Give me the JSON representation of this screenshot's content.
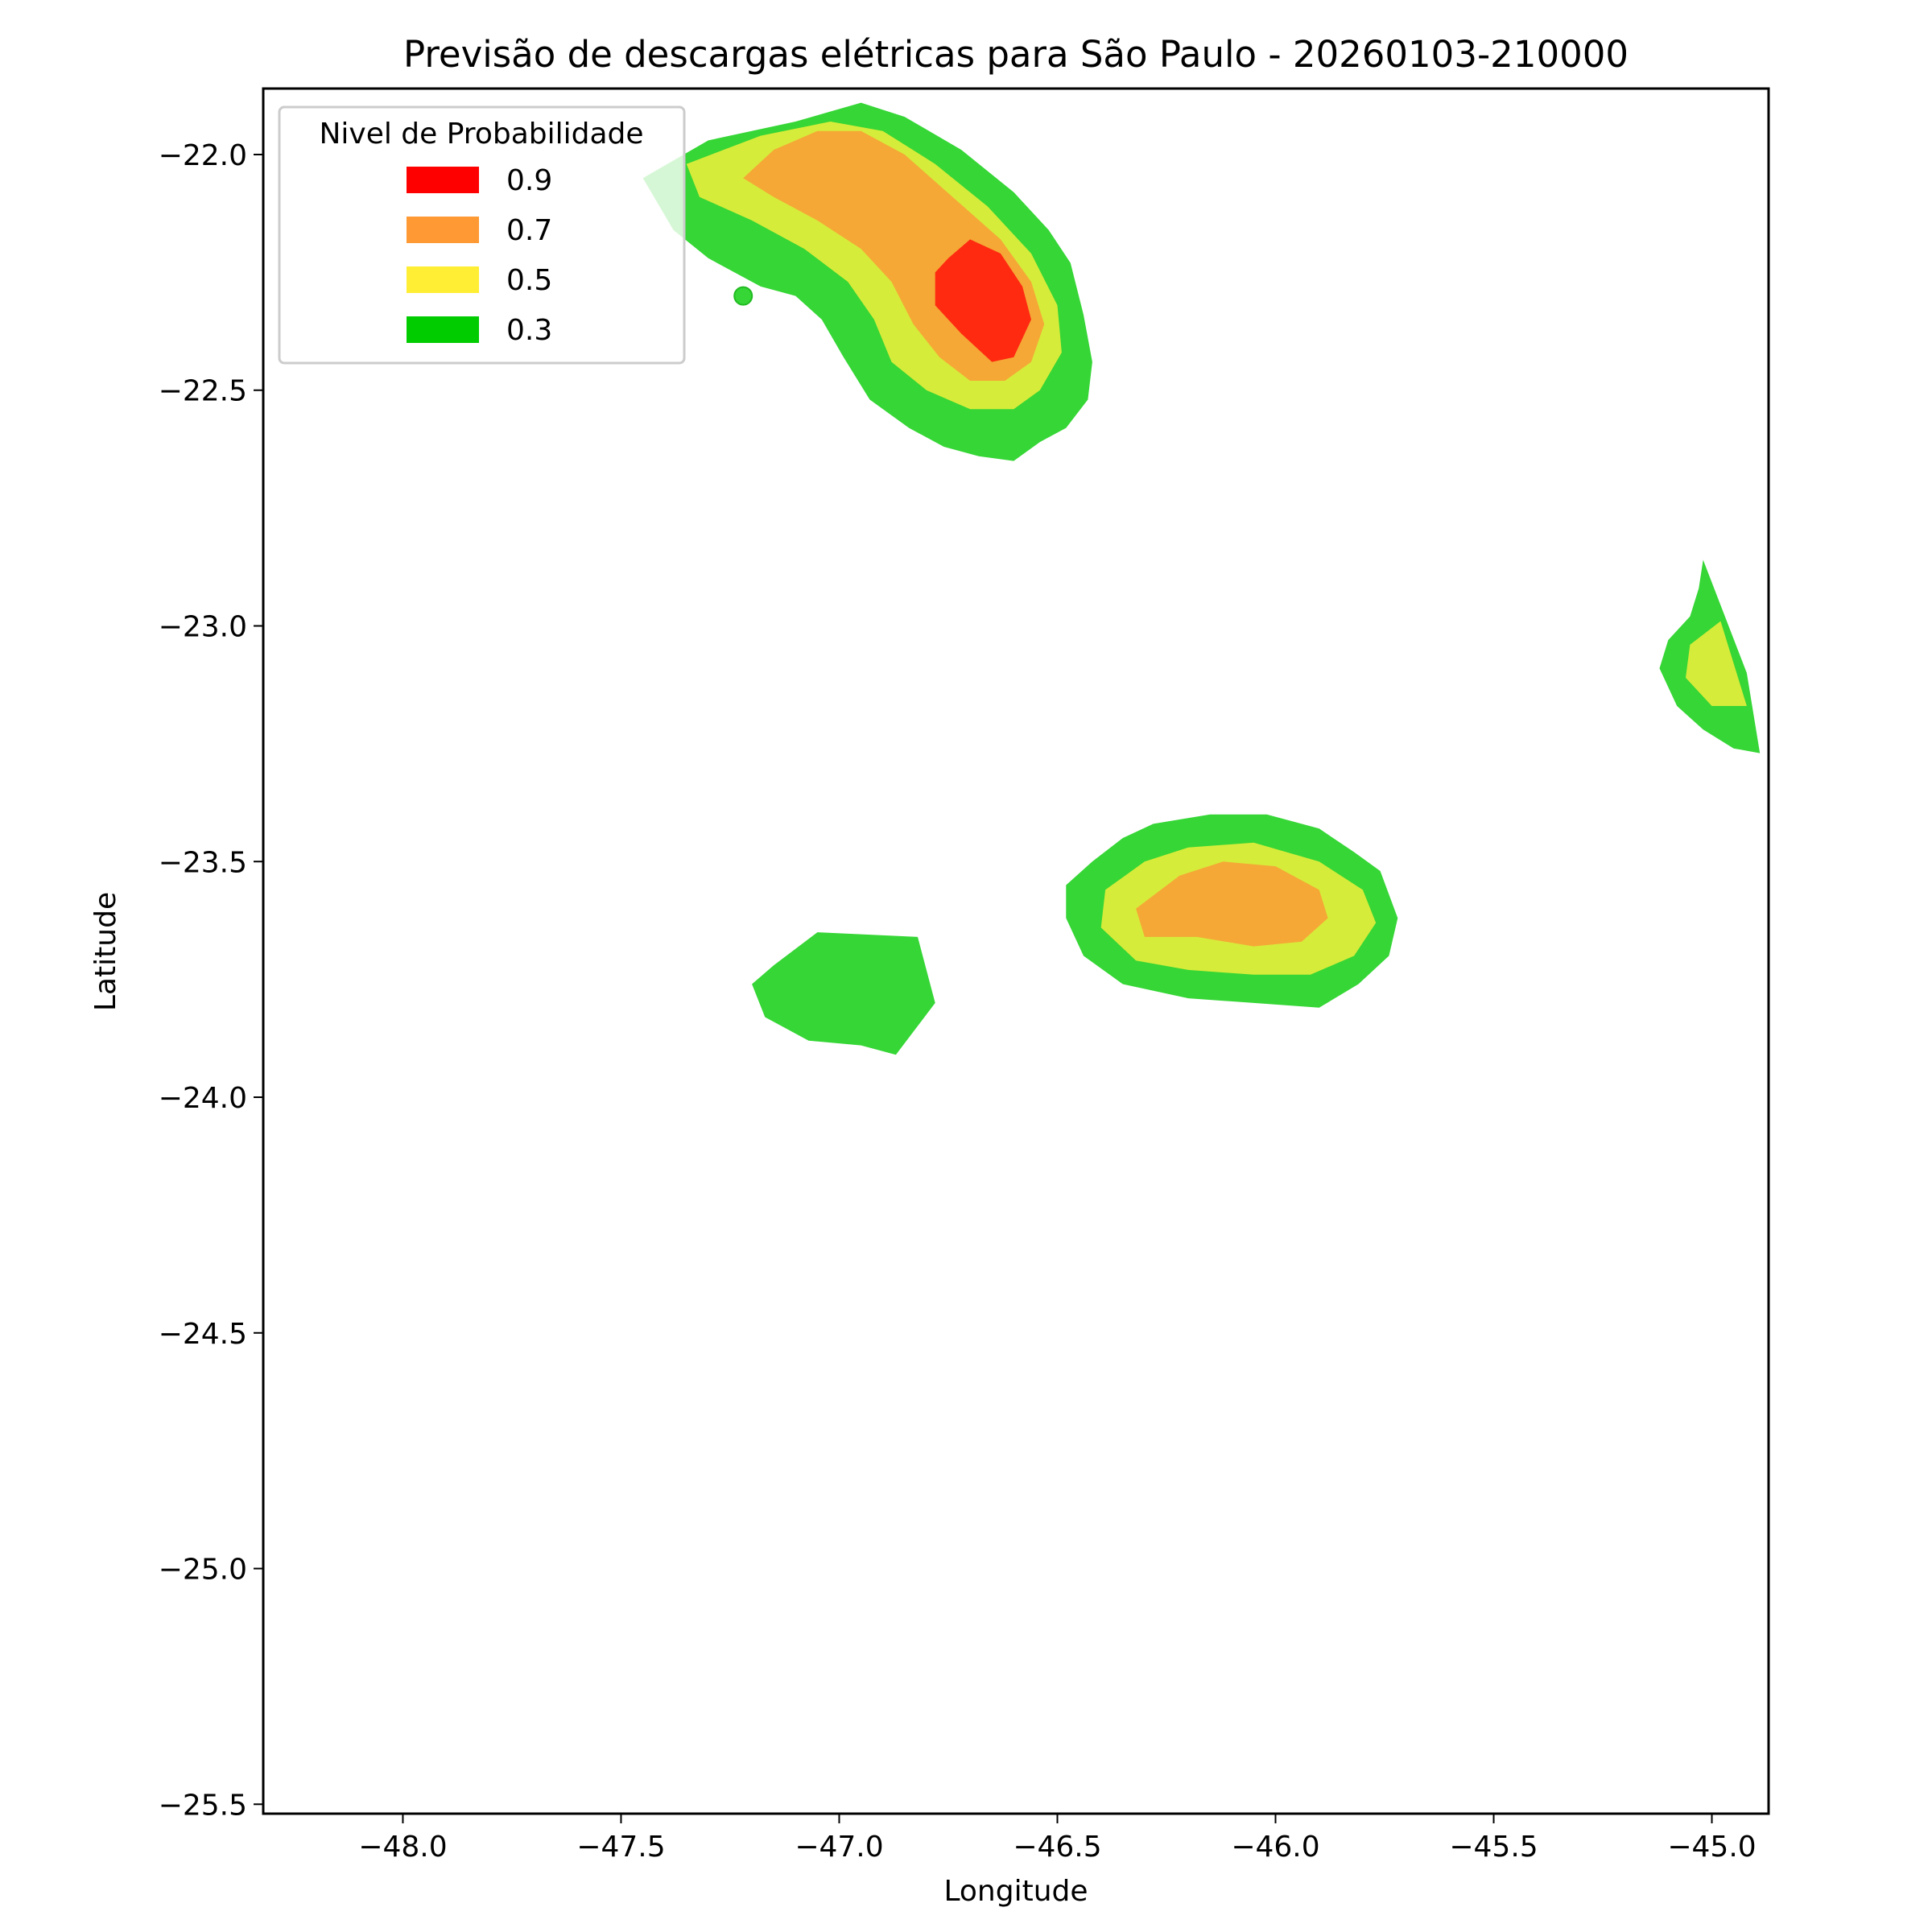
{
  "chart_data": {
    "type": "contour",
    "title": "Previsão de descargas elétricas para São Paulo - 20260103-210000",
    "xlabel": "Longitude",
    "ylabel": "Latitude",
    "xlim": [
      -48.32,
      -44.87
    ],
    "ylim": [
      -25.52,
      -21.86
    ],
    "xticks": [
      -48.0,
      -47.5,
      -47.0,
      -46.5,
      -46.0,
      -45.5,
      -45.0
    ],
    "yticks": [
      -22.0,
      -22.5,
      -23.0,
      -23.5,
      -24.0,
      -24.5,
      -25.0,
      -25.5
    ],
    "xtick_labels": [
      "−48.0",
      "−47.5",
      "−47.0",
      "−46.5",
      "−46.0",
      "−45.5",
      "−45.0"
    ],
    "ytick_labels": [
      "−22.0",
      "−22.5",
      "−23.0",
      "−23.5",
      "−24.0",
      "−24.5",
      "−25.0",
      "−25.5"
    ],
    "legend": {
      "title": "Nivel de Probabilidade",
      "position": "upper-left",
      "entries": [
        {
          "label": "0.9",
          "color": "#ff0000"
        },
        {
          "label": "0.7",
          "color": "#ff9933"
        },
        {
          "label": "0.5",
          "color": "#ffee33"
        },
        {
          "label": "0.3",
          "color": "#00cc00"
        }
      ]
    },
    "level_fill_colors": {
      "0.3": "#35d635",
      "0.5": "#d6ec3a",
      "0.7": "#f5a836",
      "0.9": "#ff2a10"
    },
    "regions": [
      {
        "name": "campinas-cell",
        "levels": [
          {
            "level": "0.3",
            "polygon": [
              [
                -47.45,
                -22.05
              ],
              [
                -47.3,
                -21.97
              ],
              [
                -47.1,
                -21.93
              ],
              [
                -46.95,
                -21.89
              ],
              [
                -46.85,
                -21.92
              ],
              [
                -46.72,
                -21.99
              ],
              [
                -46.6,
                -22.08
              ],
              [
                -46.52,
                -22.16
              ],
              [
                -46.47,
                -22.23
              ],
              [
                -46.44,
                -22.34
              ],
              [
                -46.42,
                -22.44
              ],
              [
                -46.43,
                -22.52
              ],
              [
                -46.48,
                -22.58
              ],
              [
                -46.54,
                -22.61
              ],
              [
                -46.6,
                -22.65
              ],
              [
                -46.68,
                -22.64
              ],
              [
                -46.76,
                -22.62
              ],
              [
                -46.84,
                -22.58
              ],
              [
                -46.93,
                -22.52
              ],
              [
                -46.99,
                -22.43
              ],
              [
                -47.04,
                -22.35
              ],
              [
                -47.1,
                -22.3
              ],
              [
                -47.18,
                -22.28
              ],
              [
                -47.3,
                -22.22
              ],
              [
                -47.38,
                -22.16
              ]
            ]
          },
          {
            "level": "0.5",
            "polygon": [
              [
                -47.35,
                -22.02
              ],
              [
                -47.18,
                -21.96
              ],
              [
                -47.02,
                -21.93
              ],
              [
                -46.9,
                -21.95
              ],
              [
                -46.78,
                -22.02
              ],
              [
                -46.66,
                -22.11
              ],
              [
                -46.56,
                -22.21
              ],
              [
                -46.5,
                -22.32
              ],
              [
                -46.49,
                -22.42
              ],
              [
                -46.54,
                -22.5
              ],
              [
                -46.6,
                -22.54
              ],
              [
                -46.7,
                -22.54
              ],
              [
                -46.8,
                -22.5
              ],
              [
                -46.88,
                -22.44
              ],
              [
                -46.92,
                -22.35
              ],
              [
                -46.98,
                -22.27
              ],
              [
                -47.08,
                -22.2
              ],
              [
                -47.2,
                -22.14
              ],
              [
                -47.32,
                -22.09
              ]
            ]
          },
          {
            "level": "0.7",
            "polygon": [
              [
                -47.15,
                -21.99
              ],
              [
                -47.05,
                -21.95
              ],
              [
                -46.95,
                -21.95
              ],
              [
                -46.85,
                -22.0
              ],
              [
                -46.74,
                -22.09
              ],
              [
                -46.63,
                -22.18
              ],
              [
                -46.56,
                -22.27
              ],
              [
                -46.53,
                -22.36
              ],
              [
                -46.56,
                -22.44
              ],
              [
                -46.62,
                -22.48
              ],
              [
                -46.7,
                -22.48
              ],
              [
                -46.77,
                -22.43
              ],
              [
                -46.83,
                -22.36
              ],
              [
                -46.88,
                -22.27
              ],
              [
                -46.95,
                -22.2
              ],
              [
                -47.05,
                -22.14
              ],
              [
                -47.15,
                -22.09
              ],
              [
                -47.22,
                -22.05
              ]
            ]
          },
          {
            "level": "0.9",
            "polygon": [
              [
                -46.75,
                -22.22
              ],
              [
                -46.7,
                -22.18
              ],
              [
                -46.63,
                -22.21
              ],
              [
                -46.58,
                -22.28
              ],
              [
                -46.56,
                -22.35
              ],
              [
                -46.6,
                -22.43
              ],
              [
                -46.65,
                -22.44
              ],
              [
                -46.72,
                -22.38
              ],
              [
                -46.78,
                -22.32
              ],
              [
                -46.78,
                -22.25
              ]
            ]
          }
        ]
      },
      {
        "name": "east-cell",
        "levels": [
          {
            "level": "0.3",
            "polygon": [
              [
                -45.02,
                -22.86
              ],
              [
                -44.92,
                -23.1
              ],
              [
                -44.89,
                -23.27
              ],
              [
                -44.95,
                -23.26
              ],
              [
                -45.02,
                -23.22
              ],
              [
                -45.08,
                -23.17
              ],
              [
                -45.12,
                -23.09
              ],
              [
                -45.1,
                -23.03
              ],
              [
                -45.05,
                -22.98
              ],
              [
                -45.03,
                -22.92
              ]
            ]
          },
          {
            "level": "0.5",
            "polygon": [
              [
                -44.98,
                -22.99
              ],
              [
                -45.05,
                -23.04
              ],
              [
                -45.06,
                -23.11
              ],
              [
                -45.0,
                -23.17
              ],
              [
                -44.92,
                -23.17
              ]
            ]
          }
        ]
      },
      {
        "name": "sao-paulo-cell",
        "levels": [
          {
            "level": "0.3",
            "polygon": [
              [
                -46.48,
                -23.55
              ],
              [
                -46.42,
                -23.5
              ],
              [
                -46.35,
                -23.45
              ],
              [
                -46.28,
                -23.42
              ],
              [
                -46.15,
                -23.4
              ],
              [
                -46.02,
                -23.4
              ],
              [
                -45.9,
                -23.43
              ],
              [
                -45.82,
                -23.48
              ],
              [
                -45.76,
                -23.52
              ],
              [
                -45.72,
                -23.62
              ],
              [
                -45.74,
                -23.7
              ],
              [
                -45.81,
                -23.76
              ],
              [
                -45.9,
                -23.81
              ],
              [
                -46.05,
                -23.8
              ],
              [
                -46.2,
                -23.79
              ],
              [
                -46.35,
                -23.76
              ],
              [
                -46.44,
                -23.7
              ],
              [
                -46.48,
                -23.62
              ]
            ]
          },
          {
            "level": "0.5",
            "polygon": [
              [
                -46.39,
                -23.56
              ],
              [
                -46.3,
                -23.5
              ],
              [
                -46.2,
                -23.47
              ],
              [
                -46.05,
                -23.46
              ],
              [
                -45.9,
                -23.5
              ],
              [
                -45.8,
                -23.56
              ],
              [
                -45.77,
                -23.63
              ],
              [
                -45.82,
                -23.7
              ],
              [
                -45.92,
                -23.74
              ],
              [
                -46.05,
                -23.74
              ],
              [
                -46.2,
                -23.73
              ],
              [
                -46.32,
                -23.71
              ],
              [
                -46.4,
                -23.64
              ]
            ]
          },
          {
            "level": "0.7",
            "polygon": [
              [
                -46.32,
                -23.6
              ],
              [
                -46.22,
                -23.53
              ],
              [
                -46.12,
                -23.5
              ],
              [
                -46.0,
                -23.51
              ],
              [
                -45.9,
                -23.56
              ],
              [
                -45.88,
                -23.62
              ],
              [
                -45.94,
                -23.67
              ],
              [
                -46.05,
                -23.68
              ],
              [
                -46.18,
                -23.66
              ],
              [
                -46.3,
                -23.66
              ]
            ]
          }
        ]
      },
      {
        "name": "santos-cell",
        "levels": [
          {
            "level": "0.3",
            "polygon": [
              [
                -47.15,
                -23.72
              ],
              [
                -47.05,
                -23.65
              ],
              [
                -46.82,
                -23.66
              ],
              [
                -46.78,
                -23.8
              ],
              [
                -46.87,
                -23.91
              ],
              [
                -46.95,
                -23.89
              ],
              [
                -47.07,
                -23.88
              ],
              [
                -47.17,
                -23.83
              ],
              [
                -47.2,
                -23.76
              ]
            ]
          }
        ]
      }
    ],
    "point_marker": {
      "lon": -47.22,
      "lat": -22.3,
      "color": "#35d635"
    }
  }
}
